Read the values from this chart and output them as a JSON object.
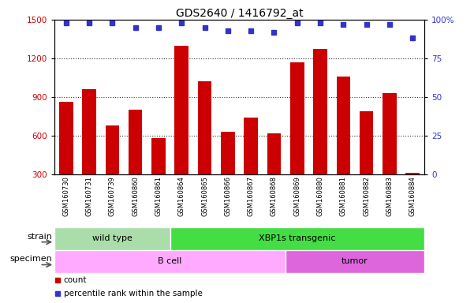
{
  "title": "GDS2640 / 1416792_at",
  "samples": [
    "GSM160730",
    "GSM160731",
    "GSM160739",
    "GSM160860",
    "GSM160861",
    "GSM160864",
    "GSM160865",
    "GSM160866",
    "GSM160867",
    "GSM160868",
    "GSM160869",
    "GSM160880",
    "GSM160881",
    "GSM160882",
    "GSM160883",
    "GSM160884"
  ],
  "counts": [
    860,
    960,
    680,
    800,
    580,
    1300,
    1020,
    630,
    740,
    615,
    1170,
    1270,
    1060,
    790,
    930,
    310
  ],
  "percentiles": [
    98,
    98,
    98,
    95,
    95,
    98,
    95,
    93,
    93,
    92,
    98,
    98,
    97,
    97,
    97,
    88
  ],
  "ylim_left": [
    300,
    1500
  ],
  "ylim_right": [
    0,
    100
  ],
  "yticks_left": [
    300,
    600,
    900,
    1200,
    1500
  ],
  "yticks_right": [
    0,
    25,
    50,
    75,
    100
  ],
  "bar_color": "#cc0000",
  "dot_color": "#3333cc",
  "background_color": "#ffffff",
  "xticklabel_bg_color": "#c8c8c8",
  "strain_group1_color": "#aaddaa",
  "strain_group2_color": "#44dd44",
  "specimen_group1_color": "#ffaaff",
  "specimen_group2_color": "#dd66dd",
  "strain_groups": [
    {
      "label": "wild type",
      "start": 0,
      "end": 4
    },
    {
      "label": "XBP1s transgenic",
      "start": 5,
      "end": 15
    }
  ],
  "specimen_groups": [
    {
      "label": "B cell",
      "start": 0,
      "end": 9
    },
    {
      "label": "tumor",
      "start": 10,
      "end": 15
    }
  ],
  "strain_label": "strain",
  "specimen_label": "specimen",
  "legend_count_label": "count",
  "legend_pct_label": "percentile rank within the sample",
  "title_fontsize": 10,
  "tick_fontsize": 7.5,
  "row_label_fontsize": 8,
  "group_label_fontsize": 8,
  "legend_fontsize": 7.5
}
